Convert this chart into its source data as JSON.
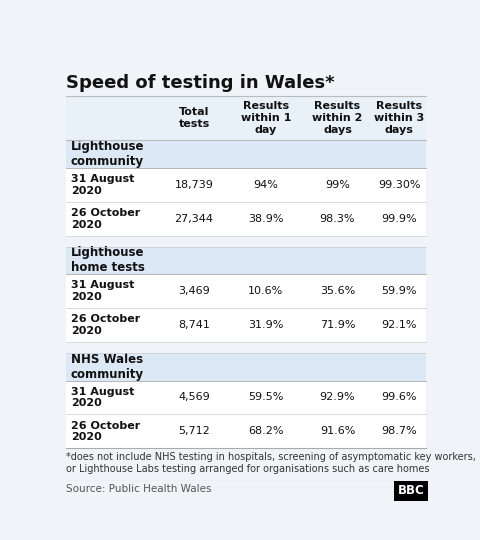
{
  "title": "Speed of testing in Wales*",
  "col_headers": [
    "Total\ntests",
    "Results\nwithin 1\nday",
    "Results\nwithin 2\ndays",
    "Results\nwithin 3\ndays"
  ],
  "sections": [
    {
      "section_label": "Lighthouse\ncommunity",
      "rows": [
        {
          "label": "31 August\n2020",
          "values": [
            "18,739",
            "94%",
            "99%",
            "99.30%"
          ]
        },
        {
          "label": "26 October\n2020",
          "values": [
            "27,344",
            "38.9%",
            "98.3%",
            "99.9%"
          ]
        }
      ]
    },
    {
      "section_label": "Lighthouse\nhome tests",
      "rows": [
        {
          "label": "31 August\n2020",
          "values": [
            "3,469",
            "10.6%",
            "35.6%",
            "59.9%"
          ]
        },
        {
          "label": "26 October\n2020",
          "values": [
            "8,741",
            "31.9%",
            "71.9%",
            "92.1%"
          ]
        }
      ]
    },
    {
      "section_label": "NHS Wales\ncommunity",
      "rows": [
        {
          "label": "31 August\n2020",
          "values": [
            "4,569",
            "59.5%",
            "92.9%",
            "99.6%"
          ]
        },
        {
          "label": "26 October\n2020",
          "values": [
            "5,712",
            "68.2%",
            "91.6%",
            "98.7%"
          ]
        }
      ]
    }
  ],
  "footnote": "*does not include NHS testing in hospitals, screening of asymptomatic key workers,\nor Lighthouse Labs testing arranged for organisations such as care homes",
  "source": "Source: Public Health Wales",
  "bbc_logo": "BBC",
  "bg_color": "#f0f4f8",
  "header_bg": "#e8f0f8",
  "section_bg": "#dce8f5",
  "row_bg": "#ffffff",
  "spacer_bg": "#f0f4f8",
  "title_fontsize": 13,
  "header_fontsize": 8,
  "section_fontsize": 8.5,
  "row_label_fontsize": 8,
  "row_val_fontsize": 8,
  "footnote_fontsize": 7,
  "source_fontsize": 7.5
}
